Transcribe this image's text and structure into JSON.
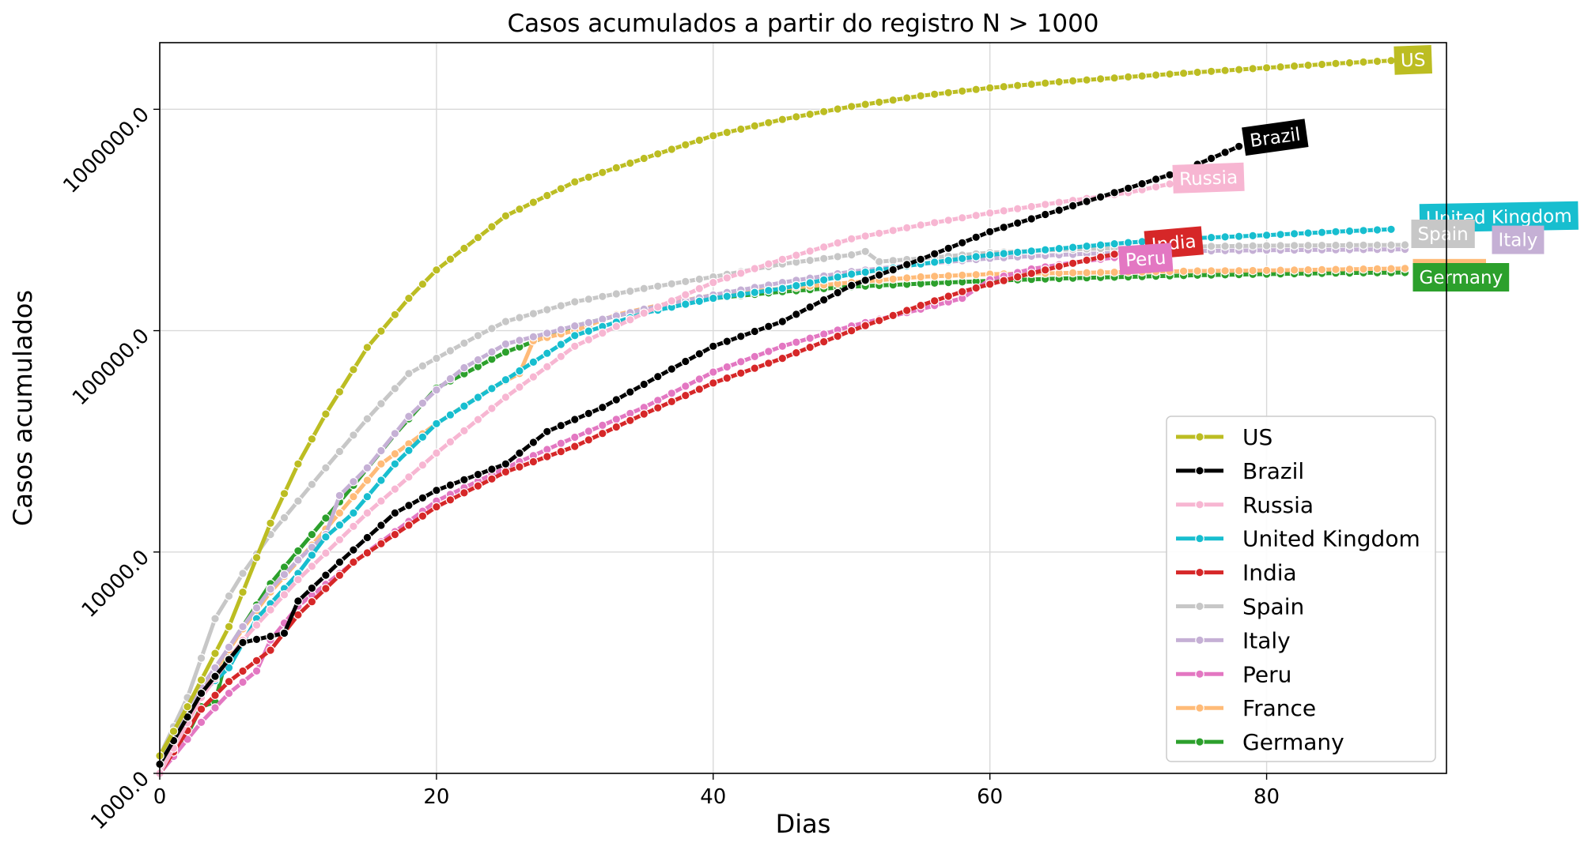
{
  "chart_data": {
    "type": "line",
    "title": "Casos acumulados a partir do registro N > 1000",
    "xlabel": "Dias",
    "ylabel": "Casos acumulados",
    "y_scale": "log",
    "xlim": [
      0,
      93
    ],
    "ylim": [
      1000,
      2000000
    ],
    "x_ticks": [
      0,
      20,
      40,
      60,
      80
    ],
    "y_ticks": [
      1000,
      10000,
      100000,
      1000000
    ],
    "y_tick_labels": [
      "1000.0",
      "10000.0",
      "100000.0",
      "1000000.0"
    ],
    "grid": true,
    "legend_position": "lower-right",
    "series": [
      {
        "name": "US",
        "color": "#bcbd22",
        "end_label": "US",
        "points": [
          [
            0,
            1200
          ],
          [
            2,
            2000
          ],
          [
            5,
            4600
          ],
          [
            8,
            13500
          ],
          [
            10,
            25000
          ],
          [
            12,
            42000
          ],
          [
            15,
            84000
          ],
          [
            18,
            140000
          ],
          [
            20,
            188000
          ],
          [
            25,
            330000
          ],
          [
            30,
            470000
          ],
          [
            35,
            600000
          ],
          [
            40,
            760000
          ],
          [
            45,
            900000
          ],
          [
            50,
            1030000
          ],
          [
            55,
            1150000
          ],
          [
            60,
            1250000
          ],
          [
            65,
            1330000
          ],
          [
            70,
            1400000
          ],
          [
            75,
            1470000
          ],
          [
            80,
            1540000
          ],
          [
            85,
            1610000
          ],
          [
            89,
            1660000
          ]
        ]
      },
      {
        "name": "Brazil",
        "color": "#000000",
        "end_label": "Brazil",
        "points": [
          [
            0,
            1100
          ],
          [
            3,
            2300
          ],
          [
            6,
            3900
          ],
          [
            9,
            4300
          ],
          [
            10,
            6000
          ],
          [
            13,
            9000
          ],
          [
            17,
            15000
          ],
          [
            20,
            19000
          ],
          [
            25,
            25000
          ],
          [
            28,
            35000
          ],
          [
            32,
            45000
          ],
          [
            36,
            62000
          ],
          [
            40,
            85000
          ],
          [
            45,
            110000
          ],
          [
            50,
            160000
          ],
          [
            55,
            210000
          ],
          [
            60,
            280000
          ],
          [
            65,
            350000
          ],
          [
            70,
            440000
          ],
          [
            74,
            530000
          ],
          [
            78,
            680000
          ]
        ]
      },
      {
        "name": "Russia",
        "color": "#f7b6d2",
        "end_label": "Russia",
        "points": [
          [
            0,
            1000
          ],
          [
            3,
            2200
          ],
          [
            6,
            4000
          ],
          [
            10,
            7500
          ],
          [
            15,
            15000
          ],
          [
            20,
            28000
          ],
          [
            25,
            50000
          ],
          [
            30,
            85000
          ],
          [
            35,
            120000
          ],
          [
            40,
            165000
          ],
          [
            45,
            210000
          ],
          [
            50,
            260000
          ],
          [
            55,
            300000
          ],
          [
            60,
            340000
          ],
          [
            65,
            380000
          ],
          [
            70,
            420000
          ],
          [
            73,
            460000
          ]
        ]
      },
      {
        "name": "United Kingdom",
        "color": "#17becf",
        "end_label": "United Kingdom",
        "points": [
          [
            0,
            1100
          ],
          [
            3,
            2300
          ],
          [
            5,
            3000
          ],
          [
            7,
            5000
          ],
          [
            10,
            8000
          ],
          [
            12,
            11700
          ],
          [
            14,
            15000
          ],
          [
            17,
            25000
          ],
          [
            20,
            38000
          ],
          [
            25,
            60000
          ],
          [
            30,
            95000
          ],
          [
            35,
            120000
          ],
          [
            40,
            140000
          ],
          [
            45,
            155000
          ],
          [
            50,
            180000
          ],
          [
            55,
            200000
          ],
          [
            60,
            220000
          ],
          [
            65,
            235000
          ],
          [
            70,
            250000
          ],
          [
            75,
            262000
          ],
          [
            80,
            270000
          ],
          [
            85,
            280000
          ],
          [
            89,
            287000
          ]
        ]
      },
      {
        "name": "India",
        "color": "#d62728",
        "end_label": "India",
        "points": [
          [
            0,
            1000
          ],
          [
            3,
            1950
          ],
          [
            5,
            2600
          ],
          [
            8,
            3600
          ],
          [
            10,
            5200
          ],
          [
            14,
            9000
          ],
          [
            20,
            16000
          ],
          [
            25,
            23000
          ],
          [
            30,
            30000
          ],
          [
            35,
            42000
          ],
          [
            40,
            58000
          ],
          [
            45,
            75000
          ],
          [
            50,
            100000
          ],
          [
            55,
            130000
          ],
          [
            58,
            150000
          ],
          [
            62,
            175000
          ],
          [
            65,
            195000
          ],
          [
            68,
            215000
          ],
          [
            71,
            235000
          ]
        ]
      },
      {
        "name": "Spain",
        "color": "#c7c7c7",
        "end_label": "Spain",
        "points": [
          [
            0,
            1200
          ],
          [
            2,
            2200
          ],
          [
            4,
            5000
          ],
          [
            6,
            8000
          ],
          [
            8,
            12000
          ],
          [
            10,
            17000
          ],
          [
            12,
            24000
          ],
          [
            15,
            40000
          ],
          [
            18,
            64000
          ],
          [
            20,
            75000
          ],
          [
            23,
            95000
          ],
          [
            25,
            110000
          ],
          [
            30,
            135000
          ],
          [
            35,
            155000
          ],
          [
            40,
            175000
          ],
          [
            45,
            200000
          ],
          [
            50,
            220000
          ],
          [
            51,
            228000
          ],
          [
            52,
            205000
          ],
          [
            55,
            212000
          ],
          [
            60,
            225000
          ],
          [
            65,
            232000
          ],
          [
            70,
            237000
          ],
          [
            75,
            240000
          ],
          [
            80,
            242000
          ],
          [
            85,
            243000
          ],
          [
            90,
            244000
          ]
        ]
      },
      {
        "name": "Italy",
        "color": "#c5b0d5",
        "end_label": "Italy",
        "points": [
          [
            0,
            1100
          ],
          [
            2,
            2000
          ],
          [
            4,
            3000
          ],
          [
            6,
            4600
          ],
          [
            8,
            6800
          ],
          [
            10,
            9200
          ],
          [
            12,
            12000
          ],
          [
            13,
            18000
          ],
          [
            15,
            24000
          ],
          [
            18,
            41000
          ],
          [
            20,
            54000
          ],
          [
            22,
            68000
          ],
          [
            25,
            87000
          ],
          [
            30,
            105000
          ],
          [
            35,
            125000
          ],
          [
            40,
            145000
          ],
          [
            45,
            165000
          ],
          [
            50,
            185000
          ],
          [
            55,
            200000
          ],
          [
            60,
            212000
          ],
          [
            65,
            220000
          ],
          [
            70,
            226000
          ],
          [
            75,
            229000
          ],
          [
            80,
            231000
          ],
          [
            85,
            232000
          ],
          [
            90,
            233000
          ]
        ]
      },
      {
        "name": "Peru",
        "color": "#e377c2",
        "end_label": "Peru",
        "points": [
          [
            0,
            1000
          ],
          [
            3,
            1700
          ],
          [
            5,
            2300
          ],
          [
            7,
            2900
          ],
          [
            8,
            4000
          ],
          [
            10,
            5700
          ],
          [
            13,
            8000
          ],
          [
            15,
            10000
          ],
          [
            20,
            17000
          ],
          [
            25,
            24000
          ],
          [
            30,
            33000
          ],
          [
            35,
            45000
          ],
          [
            40,
            65000
          ],
          [
            45,
            85000
          ],
          [
            50,
            105000
          ],
          [
            55,
            125000
          ],
          [
            58,
            140000
          ],
          [
            60,
            170000
          ],
          [
            63,
            190000
          ],
          [
            66,
            203000
          ],
          [
            69,
            214000
          ]
        ]
      },
      {
        "name": "France",
        "color": "#ffbb78",
        "end_label": "France",
        "points": [
          [
            0,
            1100
          ],
          [
            2,
            1800
          ],
          [
            4,
            2900
          ],
          [
            6,
            4500
          ],
          [
            8,
            6600
          ],
          [
            10,
            9100
          ],
          [
            13,
            15000
          ],
          [
            16,
            25000
          ],
          [
            20,
            38000
          ],
          [
            24,
            55000
          ],
          [
            26,
            64000
          ],
          [
            27,
            90000
          ],
          [
            30,
            100000
          ],
          [
            33,
            118000
          ],
          [
            36,
            130000
          ],
          [
            40,
            145000
          ],
          [
            45,
            155000
          ],
          [
            50,
            165000
          ],
          [
            55,
            175000
          ],
          [
            60,
            180000
          ],
          [
            65,
            182000
          ],
          [
            70,
            184000
          ],
          [
            75,
            186000
          ],
          [
            80,
            187000
          ],
          [
            85,
            189000
          ],
          [
            90,
            191000
          ]
        ]
      },
      {
        "name": "Germany",
        "color": "#2ca02c",
        "end_label": "Germany",
        "points": [
          [
            0,
            1000
          ],
          [
            1,
            1300
          ],
          [
            2,
            1500
          ],
          [
            3,
            2000
          ],
          [
            4,
            2100
          ],
          [
            5,
            3700
          ],
          [
            8,
            7200
          ],
          [
            11,
            12000
          ],
          [
            14,
            20000
          ],
          [
            17,
            34000
          ],
          [
            20,
            55000
          ],
          [
            25,
            80000
          ],
          [
            30,
            105000
          ],
          [
            35,
            125000
          ],
          [
            40,
            140000
          ],
          [
            45,
            150000
          ],
          [
            50,
            158000
          ],
          [
            55,
            163000
          ],
          [
            60,
            168000
          ],
          [
            65,
            172000
          ],
          [
            70,
            175000
          ],
          [
            75,
            178000
          ],
          [
            80,
            180000
          ],
          [
            85,
            182000
          ],
          [
            90,
            183000
          ]
        ]
      }
    ]
  }
}
